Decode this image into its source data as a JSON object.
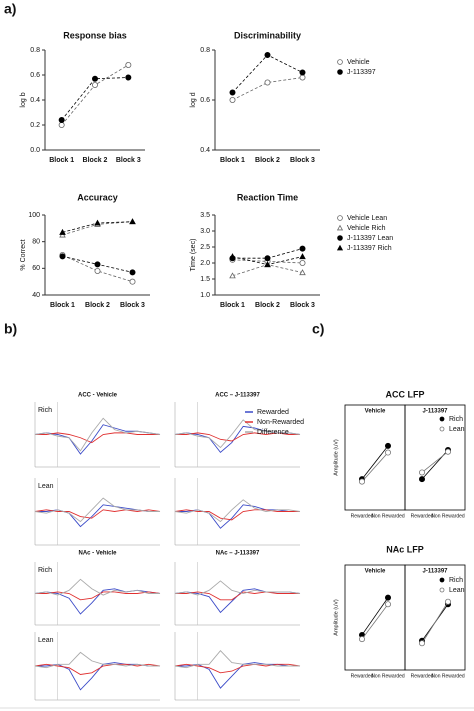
{
  "figure_labels": [
    "a)",
    "b)",
    "c)"
  ],
  "chart_data": [
    {
      "type": "line",
      "title": "Response bias",
      "ylabel": "log b",
      "categories": [
        "Block 1",
        "Block 2",
        "Block 3"
      ],
      "ylim": [
        0,
        0.8
      ],
      "yticks": [
        {
          "value": 0,
          "label": "0.0"
        },
        0.2,
        0.4,
        0.6,
        0.8
      ],
      "dashed": true,
      "legend": false,
      "series": [
        {
          "marker": "circle-open",
          "color": "#666666",
          "values": [
            0.2,
            0.52,
            0.68
          ]
        },
        {
          "marker": "circle",
          "color": "#000000",
          "values": [
            0.24,
            0.57,
            0.58
          ]
        }
      ]
    },
    {
      "type": "line",
      "title": "Discriminability",
      "ylabel": "log d",
      "categories": [
        "Block 1",
        "Block 2",
        "Block 3"
      ],
      "ylim": [
        0.4,
        0.8
      ],
      "yticks": [
        0.4,
        0.6,
        0.8
      ],
      "dashed": true,
      "legend": true,
      "series": [
        {
          "name": "Vehicle",
          "marker": "circle-open",
          "color": "#666666",
          "values": [
            0.6,
            0.67,
            0.69
          ]
        },
        {
          "name": "J-113397",
          "marker": "circle",
          "color": "#000000",
          "values": [
            0.63,
            0.78,
            0.71
          ]
        }
      ]
    },
    {
      "type": "line",
      "title": "Accuracy",
      "ylabel": "% Correct",
      "categories": [
        "Block 1",
        "Block 2",
        "Block 3"
      ],
      "ylim": [
        40,
        100
      ],
      "yticks": [
        40,
        60,
        80,
        100
      ],
      "dashed": true,
      "legend": false,
      "series": [
        {
          "marker": "circle-open",
          "color": "#666666",
          "values": [
            70,
            58,
            50
          ]
        },
        {
          "marker": "triangle-open",
          "color": "#666666",
          "values": [
            85,
            93,
            95
          ]
        },
        {
          "marker": "circle",
          "color": "#000000",
          "values": [
            69,
            63,
            57
          ]
        },
        {
          "marker": "triangle",
          "color": "#000000",
          "values": [
            87,
            94,
            95
          ]
        }
      ]
    },
    {
      "type": "line",
      "title": "Reaction Time",
      "ylabel": "Time (sec)",
      "categories": [
        "Block 1",
        "Block 2",
        "Block 3"
      ],
      "ylim": [
        1.0,
        3.5
      ],
      "yticks": [
        {
          "value": 1,
          "label": "1.0"
        },
        1.5,
        {
          "value": 2,
          "label": "2.0"
        },
        2.5,
        {
          "value": 3,
          "label": "3.0"
        },
        3.5
      ],
      "dashed": true,
      "legend": true,
      "series": [
        {
          "name": "Vehicle Lean",
          "marker": "circle-open",
          "color": "#666666",
          "values": [
            2.1,
            2.05,
            2.0
          ]
        },
        {
          "name": "Vehicle Rich",
          "marker": "triangle-open",
          "color": "#666666",
          "values": [
            1.6,
            1.95,
            1.7
          ]
        },
        {
          "name": "J-113397 Lean",
          "marker": "circle",
          "color": "#000000",
          "values": [
            2.15,
            2.15,
            2.45
          ]
        },
        {
          "name": "J-113397 Rich",
          "marker": "triangle",
          "color": "#000000",
          "values": [
            2.2,
            1.95,
            2.2
          ]
        }
      ]
    },
    {
      "type": "trace",
      "title": "ACC - Vehicle",
      "x": [
        -200,
        -100,
        0,
        100,
        200,
        300,
        400,
        500,
        600,
        700,
        800,
        900
      ],
      "xlim": [
        -200,
        900
      ],
      "ylim": [
        -1,
        1
      ],
      "legend": false,
      "facets": [
        {
          "label": "Rich",
          "series": [
            {
              "color": "#3b4bc8",
              "values": [
                0,
                0.05,
                0,
                -0.1,
                -0.6,
                -0.2,
                0.3,
                0.2,
                0.1,
                0.1,
                0.05,
                0
              ]
            },
            {
              "color": "#e03030",
              "values": [
                0,
                0,
                0.05,
                0,
                -0.1,
                -0.25,
                0,
                0.05,
                0.05,
                0,
                0,
                0
              ]
            },
            {
              "color": "#aaaaaa",
              "values": [
                0,
                0.05,
                -0.05,
                -0.1,
                -0.5,
                0.05,
                0.5,
                0.15,
                0.05,
                0.1,
                0.05,
                0
              ]
            }
          ]
        },
        {
          "label": "Lean",
          "series": [
            {
              "color": "#3b4bc8",
              "values": [
                0,
                0,
                0.05,
                -0.05,
                -0.45,
                -0.15,
                0.2,
                0.15,
                0.1,
                0.05,
                0,
                0
              ]
            },
            {
              "color": "#e03030",
              "values": [
                0,
                0.05,
                0,
                0,
                -0.15,
                -0.2,
                0.05,
                0,
                0.05,
                0,
                0.05,
                0
              ]
            },
            {
              "color": "#aaaaaa",
              "values": [
                0,
                -0.05,
                0.05,
                -0.05,
                -0.3,
                0.05,
                0.4,
                0.15,
                0.05,
                0.05,
                0,
                0
              ]
            }
          ]
        }
      ]
    },
    {
      "type": "trace",
      "title": "ACC – J-113397",
      "x": [
        -200,
        -100,
        0,
        100,
        200,
        300,
        400,
        500,
        600,
        700,
        800,
        900
      ],
      "xlim": [
        -200,
        900
      ],
      "ylim": [
        -1,
        1
      ],
      "legend": true,
      "facets": [
        {
          "label": null,
          "series": [
            {
              "name": "Rewarded",
              "color": "#3b4bc8",
              "values": [
                0,
                0.05,
                0,
                -0.1,
                -0.55,
                -0.25,
                0.25,
                0.2,
                0.1,
                0.05,
                0.05,
                0
              ]
            },
            {
              "name": "Non-Rewarded",
              "color": "#e03030",
              "values": [
                0,
                0,
                0.05,
                0,
                -0.15,
                -0.2,
                0,
                0.05,
                0,
                0.05,
                0,
                0
              ]
            },
            {
              "name": "Difference",
              "color": "#aaaaaa",
              "values": [
                0,
                0.05,
                -0.05,
                -0.1,
                -0.4,
                0,
                0.45,
                0.15,
                0.1,
                0.05,
                0.05,
                0
              ]
            }
          ]
        },
        {
          "label": null,
          "series": [
            {
              "color": "#3b4bc8",
              "values": [
                0,
                0,
                0.05,
                -0.05,
                -0.5,
                -0.2,
                0.2,
                0.15,
                0.05,
                0.05,
                0,
                0
              ]
            },
            {
              "color": "#e03030",
              "values": [
                0,
                0.05,
                0,
                0,
                -0.2,
                -0.25,
                0,
                0.05,
                0.05,
                0,
                0,
                0
              ]
            },
            {
              "color": "#aaaaaa",
              "values": [
                0,
                -0.05,
                0.05,
                -0.05,
                -0.3,
                0.05,
                0.35,
                0.1,
                0,
                0.05,
                0.05,
                0
              ]
            }
          ]
        }
      ]
    },
    {
      "type": "trace",
      "title": "NAc - Vehicle",
      "x": [
        -200,
        -100,
        0,
        100,
        200,
        300,
        400,
        500,
        600,
        700,
        800,
        900
      ],
      "xlim": [
        -200,
        900
      ],
      "ylim": [
        -1,
        1
      ],
      "legend": false,
      "facets": [
        {
          "label": "Rich",
          "series": [
            {
              "color": "#3b4bc8",
              "values": [
                0,
                0.05,
                0,
                -0.15,
                -0.65,
                -0.3,
                0.1,
                0.15,
                0.05,
                0.1,
                0.05,
                0
              ]
            },
            {
              "color": "#e03030",
              "values": [
                0,
                0,
                0.05,
                0,
                -0.2,
                -0.15,
                0.05,
                0.05,
                0,
                0,
                0.05,
                0
              ]
            },
            {
              "color": "#aaaaaa",
              "values": [
                0,
                0.05,
                -0.05,
                0.1,
                0.45,
                0.15,
                -0.05,
                0.1,
                0.05,
                0.1,
                0,
                0
              ]
            }
          ]
        },
        {
          "label": "Lean",
          "series": [
            {
              "color": "#3b4bc8",
              "values": [
                0,
                0,
                0.05,
                -0.1,
                -0.7,
                -0.35,
                0.05,
                0.1,
                0.05,
                0.05,
                0,
                0
              ]
            },
            {
              "color": "#e03030",
              "values": [
                0,
                0.05,
                0,
                -0.05,
                -0.25,
                -0.2,
                0,
                0.05,
                0.05,
                0,
                0.05,
                0
              ]
            },
            {
              "color": "#aaaaaa",
              "values": [
                0,
                -0.05,
                0.05,
                0.05,
                0.4,
                0.15,
                0.05,
                0.05,
                0,
                0.05,
                0,
                0
              ]
            }
          ]
        }
      ]
    },
    {
      "type": "trace",
      "title": "NAc – J-113397",
      "x": [
        -200,
        -100,
        0,
        100,
        200,
        300,
        400,
        500,
        600,
        700,
        800,
        900
      ],
      "xlim": [
        -200,
        900
      ],
      "ylim": [
        -1,
        1
      ],
      "legend": false,
      "facets": [
        {
          "label": null,
          "series": [
            {
              "color": "#3b4bc8",
              "values": [
                0,
                0.05,
                0,
                -0.1,
                -0.6,
                -0.25,
                0.1,
                0.15,
                0.05,
                0.05,
                0.05,
                0
              ]
            },
            {
              "color": "#e03030",
              "values": [
                0,
                0,
                0.05,
                0,
                -0.2,
                -0.2,
                0.05,
                0,
                0.05,
                0,
                0,
                0
              ]
            },
            {
              "color": "#aaaaaa",
              "values": [
                0,
                0.05,
                -0.05,
                0.1,
                0.4,
                0.1,
                0,
                0.1,
                0.05,
                0.05,
                0.05,
                0
              ]
            }
          ]
        },
        {
          "label": null,
          "series": [
            {
              "color": "#3b4bc8",
              "values": [
                0,
                0,
                0.05,
                -0.1,
                -0.65,
                -0.3,
                0.05,
                0.1,
                0.05,
                0.05,
                0,
                0
              ]
            },
            {
              "color": "#e03030",
              "values": [
                0,
                0.05,
                0,
                -0.05,
                -0.2,
                -0.15,
                0,
                0.05,
                0,
                0.05,
                0.05,
                0
              ]
            },
            {
              "color": "#aaaaaa",
              "values": [
                0,
                -0.05,
                0.05,
                0.05,
                0.45,
                0.1,
                0.05,
                0.05,
                0.05,
                0,
                0,
                0
              ]
            }
          ]
        }
      ]
    },
    {
      "type": "line",
      "title": "ACC LFP",
      "ylabel": "Amplitude (uV)",
      "categories": [
        "Rewarded",
        "Non Rewarded"
      ],
      "ylim": [
        0,
        1
      ],
      "legend": true,
      "dashed": false,
      "facets": [
        {
          "label": "Vehicle",
          "series": [
            {
              "name": "Rich",
              "marker": "circle",
              "color": "#000000",
              "values": [
                0.3,
                0.7
              ]
            },
            {
              "name": "Lean",
              "marker": "circle-open",
              "color": "#777777",
              "values": [
                0.27,
                0.62
              ]
            }
          ]
        },
        {
          "label": "J-113397",
          "series": [
            {
              "marker": "circle",
              "color": "#000000",
              "values": [
                0.3,
                0.65
              ]
            },
            {
              "marker": "circle-open",
              "color": "#777777",
              "values": [
                0.38,
                0.63
              ]
            }
          ]
        }
      ]
    },
    {
      "type": "line",
      "title": "NAc LFP",
      "ylabel": "Amplitude (uV)",
      "categories": [
        "Rewarded",
        "Non Rewarded"
      ],
      "ylim": [
        0,
        1
      ],
      "legend": true,
      "dashed": false,
      "facets": [
        {
          "label": "Vehicle",
          "series": [
            {
              "name": "Rich",
              "marker": "circle",
              "color": "#000000",
              "values": [
                0.35,
                0.8
              ]
            },
            {
              "name": "Lean",
              "marker": "circle-open",
              "color": "#777777",
              "values": [
                0.3,
                0.72
              ]
            }
          ]
        },
        {
          "label": "J-113397",
          "series": [
            {
              "marker": "circle",
              "color": "#000000",
              "values": [
                0.28,
                0.72
              ]
            },
            {
              "marker": "circle-open",
              "color": "#777777",
              "values": [
                0.25,
                0.75
              ]
            }
          ]
        }
      ]
    }
  ]
}
